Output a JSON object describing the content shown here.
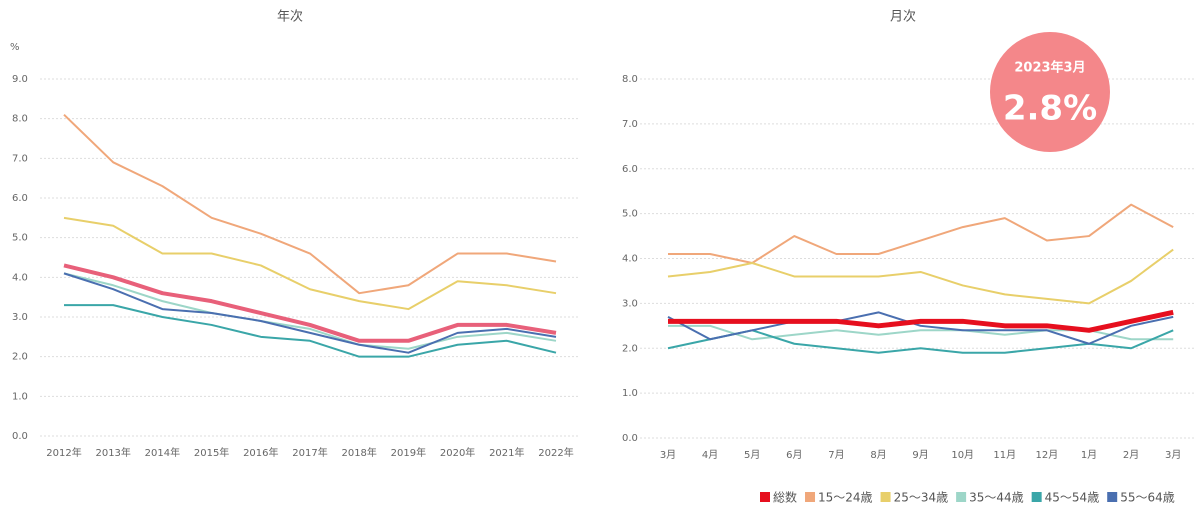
{
  "chart_data": [
    {
      "type": "line",
      "title": "年次",
      "y_unit": "%",
      "categories": [
        "2012年",
        "2013年",
        "2014年",
        "2015年",
        "2016年",
        "2017年",
        "2018年",
        "2019年",
        "2020年",
        "2021年",
        "2022年"
      ],
      "ylim": [
        0,
        9
      ],
      "yticks": [
        {
          "value": 0,
          "label": "0.0"
        },
        {
          "value": 1,
          "label": "1.0"
        },
        {
          "value": 2,
          "label": "2.0"
        },
        {
          "value": 3,
          "label": "3.0"
        },
        {
          "value": 4,
          "label": "4.0"
        },
        {
          "value": 5,
          "label": "5.0"
        },
        {
          "value": 6,
          "label": "6.0"
        },
        {
          "value": 7,
          "label": "7.0"
        },
        {
          "value": 8,
          "label": "8.0"
        },
        {
          "value": 9,
          "label": "9.0"
        }
      ],
      "grid": true,
      "series": [
        {
          "name": "15～24歳",
          "color": "#f0a77a",
          "values": [
            8.1,
            6.9,
            6.3,
            5.5,
            5.1,
            4.6,
            3.6,
            3.8,
            4.6,
            4.6,
            4.4
          ]
        },
        {
          "name": "25～34歳",
          "color": "#e8cf6a",
          "values": [
            5.5,
            5.3,
            4.6,
            4.6,
            4.3,
            3.7,
            3.4,
            3.2,
            3.9,
            3.8,
            3.6
          ]
        },
        {
          "name": "35～44歳",
          "color": "#9dd6c8",
          "values": [
            4.1,
            3.8,
            3.4,
            3.1,
            2.9,
            2.7,
            2.3,
            2.2,
            2.5,
            2.6,
            2.4
          ]
        },
        {
          "name": "45～54歳",
          "color": "#3aa6a8",
          "values": [
            3.3,
            3.3,
            3.0,
            2.8,
            2.5,
            2.4,
            2.0,
            2.0,
            2.3,
            2.4,
            2.1
          ]
        },
        {
          "name": "55～64歳",
          "color": "#4a6fb0",
          "values": [
            4.1,
            3.7,
            3.2,
            3.1,
            2.9,
            2.6,
            2.3,
            2.1,
            2.6,
            2.7,
            2.5
          ]
        },
        {
          "name": "総数",
          "color": "#e8607a",
          "values": [
            4.3,
            4.0,
            3.6,
            3.4,
            3.1,
            2.8,
            2.4,
            2.4,
            2.8,
            2.8,
            2.6
          ]
        }
      ]
    },
    {
      "type": "line",
      "title": "月次",
      "categories": [
        "3月",
        "4月",
        "5月",
        "6月",
        "7月",
        "8月",
        "9月",
        "10月",
        "11月",
        "12月",
        "1月",
        "2月",
        "3月"
      ],
      "ylim": [
        0,
        8
      ],
      "yticks": [
        {
          "value": 0,
          "label": "0.0"
        },
        {
          "value": 1,
          "label": "1.0"
        },
        {
          "value": 2,
          "label": "2.0"
        },
        {
          "value": 3,
          "label": "3.0"
        },
        {
          "value": 4,
          "label": "4.0"
        },
        {
          "value": 5,
          "label": "5.0"
        },
        {
          "value": 6,
          "label": "6.0"
        },
        {
          "value": 7,
          "label": "7.0"
        },
        {
          "value": 8,
          "label": "8.0"
        }
      ],
      "grid": true,
      "annotation": {
        "text": "2023年3月",
        "value": 2.8,
        "value_label": "2.8%"
      },
      "series": [
        {
          "name": "15～24歳",
          "color": "#f0a77a",
          "values": [
            4.1,
            4.1,
            3.9,
            4.5,
            4.1,
            4.1,
            4.4,
            4.7,
            4.9,
            4.4,
            4.5,
            5.2,
            4.7
          ]
        },
        {
          "name": "25～34歳",
          "color": "#e8cf6a",
          "values": [
            3.6,
            3.7,
            3.9,
            3.6,
            3.6,
            3.6,
            3.7,
            3.4,
            3.2,
            3.1,
            3.0,
            3.5,
            4.2
          ]
        },
        {
          "name": "35～44歳",
          "color": "#9dd6c8",
          "values": [
            2.5,
            2.5,
            2.2,
            2.3,
            2.4,
            2.3,
            2.4,
            2.4,
            2.3,
            2.4,
            2.4,
            2.2,
            2.2
          ]
        },
        {
          "name": "45～54歳",
          "color": "#3aa6a8",
          "values": [
            2.0,
            2.2,
            2.4,
            2.1,
            2.0,
            1.9,
            2.0,
            1.9,
            1.9,
            2.0,
            2.1,
            2.0,
            2.4
          ]
        },
        {
          "name": "55～64歳",
          "color": "#4a6fb0",
          "values": [
            2.7,
            2.2,
            2.4,
            2.6,
            2.6,
            2.8,
            2.5,
            2.4,
            2.4,
            2.4,
            2.1,
            2.5,
            2.7
          ]
        },
        {
          "name": "総数",
          "color": "#e60f1e",
          "values": [
            2.6,
            2.6,
            2.6,
            2.6,
            2.6,
            2.5,
            2.6,
            2.6,
            2.5,
            2.5,
            2.4,
            2.6,
            2.8
          ]
        }
      ]
    }
  ]
}
